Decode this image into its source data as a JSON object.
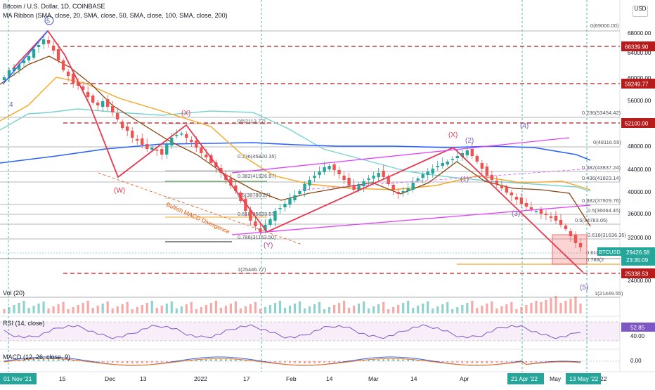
{
  "header": {
    "symbol_line": "Bitcoin / U.S. Dollar, 1D, COINBASE",
    "ribbon_line": "MA Ribbon (SMA, close, 20, SMA, close, 50, SMA, close, 100, SMA, close, 200)",
    "vol_line": "Vol (20)",
    "rsi_line": "RSI (14, close)",
    "macd_line": "MACD (12, 26, close, 9)"
  },
  "scale_button": "USD",
  "colors": {
    "up": "#26a69a",
    "down": "#ef5350",
    "wave": "#e53950",
    "channel": "#e040fb",
    "sma20": "#8b4513",
    "sma50": "#f5a623",
    "sma100": "#79d2d2",
    "sma200": "#2962ff"
  },
  "price_axis": {
    "ticks": [
      "68000.00",
      "64000.00",
      "60000.00",
      "56000.00",
      "48000.00",
      "44000.00",
      "40000.00",
      "36000.00",
      "32000.00",
      "24000.00"
    ],
    "levels": [
      {
        "label": "66339.90",
        "kind": "dashed"
      },
      {
        "label": "59249.77",
        "kind": "dashed"
      },
      {
        "label": "52100.00",
        "kind": "dashed"
      },
      {
        "label": "25338.53",
        "kind": "dashed"
      }
    ],
    "current": {
      "symbol": "BTCUSD",
      "price": "29426.58",
      "countdown": "23:35:09"
    }
  },
  "fib_labels": {
    "f1": "0(69000.00)",
    "f2": "0.236(53454.42)",
    "f3": "0(48116.55)",
    "f4": "0.382(43837.24)",
    "f5": "0.436(41823.14)",
    "f6": "0.882(37929.76)",
    "f7": "0.5(36064.45)",
    "f8": "0.5(34783.05)",
    "f9": "0.618(31636.35)",
    "f10": "1(21449.55)",
    "g1": "0(52113.77)",
    "g2": "0.236(45820.35)",
    "g3": "0.382(41926.97)",
    "g4": "0.5(38780.27)",
    "g5": "0.618(35633.57)",
    "g6": "0.786(31153.50)",
    "g7": "1(25446.77)",
    "t1": "0.618(2",
    "t2": "0.786(2"
  },
  "wave_labels": {
    "w4": "4",
    "w5c": "5",
    "wW": "(W)",
    "wX1": "(X)",
    "wY": "(Y)",
    "wX2": "(X)",
    "w2": "(2)",
    "w1": "(1)",
    "w3": "(3)",
    "w4b": "(4)",
    "w5": "(5)"
  },
  "annotation": "Bullish MACD Divergence",
  "time_axis": {
    "labels": [
      "15",
      "Dec",
      "13",
      "2022",
      "17",
      "Feb",
      "14",
      "Mar",
      "14",
      "Apr",
      "May",
      "22"
    ],
    "highlighted": [
      "01 Nov '21",
      "21 Apr '22",
      "13 May '22"
    ]
  },
  "rsi": {
    "upper": "52.85",
    "lower": "40.00"
  },
  "macd": {
    "zero": "0.00"
  }
}
